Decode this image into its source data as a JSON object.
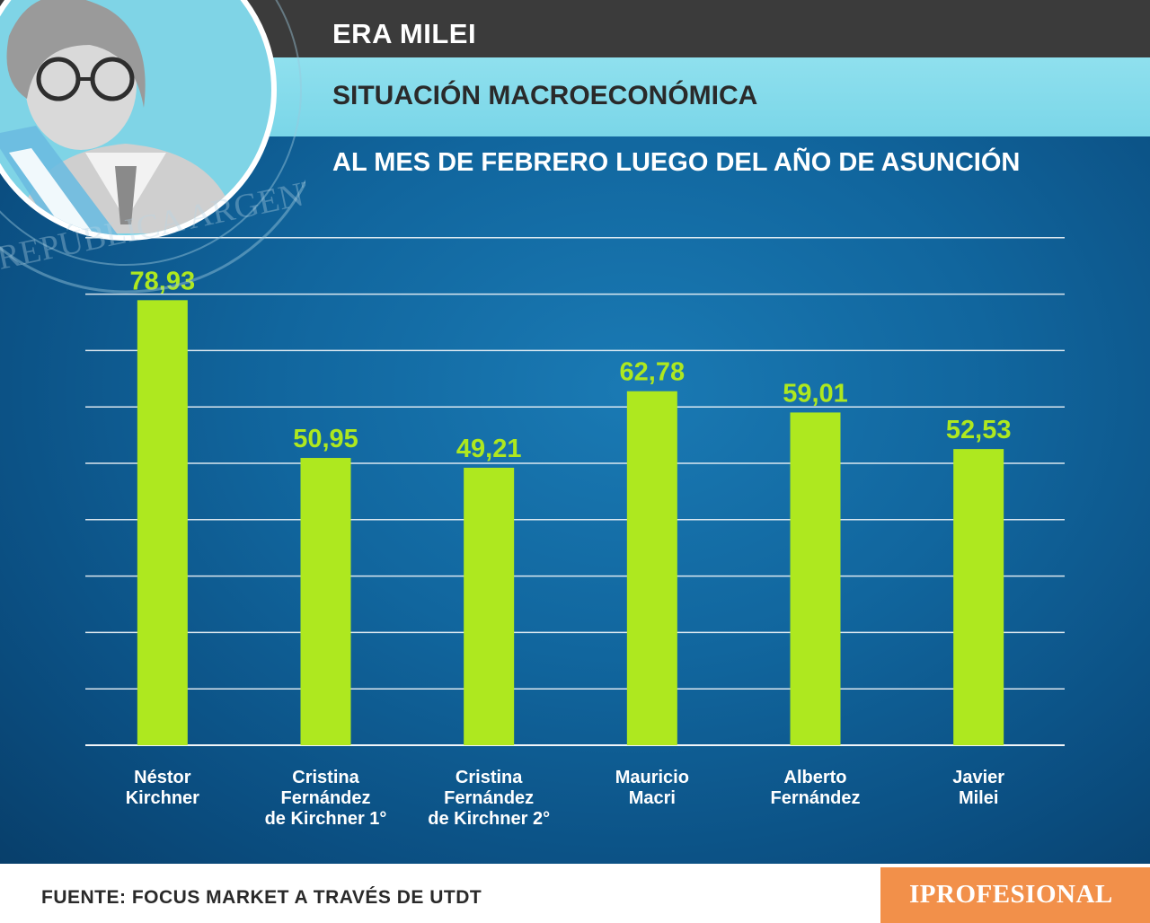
{
  "header": {
    "title": "ERA MILEI",
    "subtitle": "SITUACIÓN MACROECONÓMICA",
    "period": "AL MES DE FEBRERO LUEGO DEL AÑO DE ASUNCIÓN"
  },
  "seal": {
    "text": "REPÚBLICA ARGENTINA · NACIÓN"
  },
  "chart_data": {
    "type": "bar",
    "title": "",
    "xlabel": "",
    "ylabel": "",
    "categories": [
      [
        "Néstor",
        "Kirchner"
      ],
      [
        "Cristina",
        "Fernández",
        "de Kirchner 1°"
      ],
      [
        "Cristina",
        "Fernández",
        "de Kirchner 2°"
      ],
      [
        "Mauricio",
        "Macri"
      ],
      [
        "Alberto",
        "Fernández"
      ],
      [
        "Javier",
        "Milei"
      ]
    ],
    "values": [
      78.93,
      50.95,
      49.21,
      62.78,
      59.01,
      52.53
    ],
    "value_labels": [
      "78,93",
      "50,95",
      "49,21",
      "62,78",
      "59,01",
      "52,53"
    ],
    "ylim": [
      0,
      90
    ],
    "grid": true,
    "legend": "none",
    "bar_color": "#aee81f"
  },
  "footer": {
    "source": "FUENTE: FOCUS MARKET A TRAVÉS DE UTDT",
    "brand": "IPROFESIONAL"
  },
  "colors": {
    "background": "#11669e",
    "header_dark": "#3b3b3b",
    "header_cyan": "#8fe0ee",
    "bar": "#aee81f",
    "brand_box": "#f2904a"
  }
}
